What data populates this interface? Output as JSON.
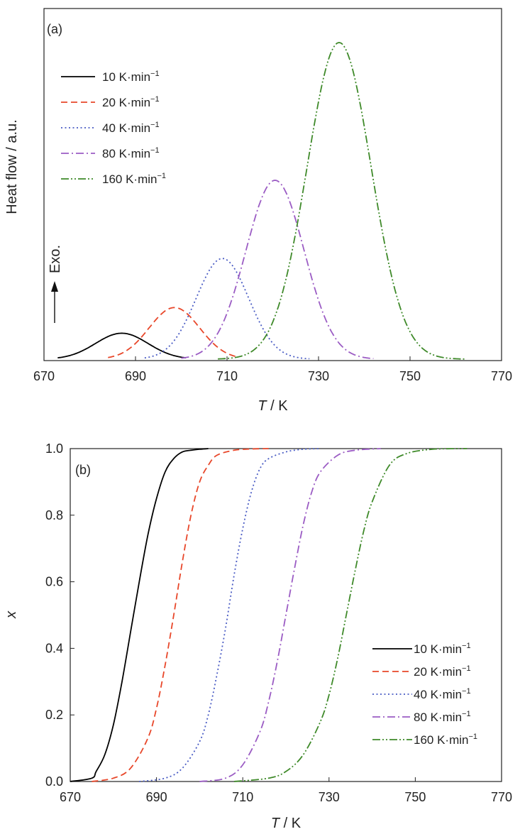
{
  "chart_data": [
    {
      "panel": "(a)",
      "type": "line",
      "xlabel": "T / K",
      "ylabel": "Heat flow / a.u.",
      "xlim": [
        670,
        770
      ],
      "xticks": [
        670,
        690,
        710,
        730,
        750,
        770
      ],
      "y_ticks_shown": false,
      "annotation": "Exo.",
      "legend_position": "top-left",
      "series": [
        {
          "name": "10 K·min−1",
          "color": "#000000",
          "dash": "solid",
          "peak_x": 687,
          "peak_y": 0.082,
          "fwhm": 13.5,
          "x_start": 673,
          "x_end": 701
        },
        {
          "name": "20 K·min−1",
          "color": "#e8472a",
          "dash": "dashed",
          "peak_x": 698.5,
          "peak_y": 0.163,
          "fwhm": 13.0,
          "x_start": 684,
          "x_end": 712
        },
        {
          "name": "40 K·min−1",
          "color": "#4a5cc4",
          "dash": "dotted",
          "peak_x": 709,
          "peak_y": 0.318,
          "fwhm": 13.5,
          "x_start": 692,
          "x_end": 728
        },
        {
          "name": "80 K·min−1",
          "color": "#9b5cc4",
          "dash": "dashdot",
          "peak_x": 720.5,
          "peak_y": 0.565,
          "fwhm": 15.0,
          "x_start": 700,
          "x_end": 742
        },
        {
          "name": "160 K·min−1",
          "color": "#3f8a2a",
          "dash": "dashdotdot",
          "peak_x": 734.5,
          "peak_y": 1.0,
          "fwhm": 16.5,
          "x_start": 708,
          "x_end": 762
        }
      ]
    },
    {
      "panel": "(b)",
      "type": "line",
      "xlabel": "T / K",
      "ylabel": "x",
      "xlim": [
        670,
        770
      ],
      "ylim": [
        0,
        1.0
      ],
      "xticks": [
        670,
        690,
        710,
        730,
        750,
        770
      ],
      "yticks": [
        0.0,
        0.2,
        0.4,
        0.6,
        0.8,
        1.0
      ],
      "legend_position": "bottom-right",
      "series": [
        {
          "name": "10 K·min−1",
          "color": "#000000",
          "dash": "solid",
          "x": [
            670,
            675,
            676,
            678,
            680,
            682,
            684,
            686,
            688,
            690,
            692,
            694,
            696,
            698,
            700,
            702
          ],
          "y": [
            0.0,
            0.01,
            0.03,
            0.08,
            0.17,
            0.3,
            0.45,
            0.6,
            0.74,
            0.85,
            0.93,
            0.97,
            0.99,
            0.995,
            0.998,
            1.0
          ]
        },
        {
          "name": "20 K·min−1",
          "color": "#e8472a",
          "dash": "dashed",
          "x": [
            675,
            680,
            684,
            688,
            690,
            692,
            694,
            696,
            698,
            700,
            702,
            704,
            708,
            712,
            716
          ],
          "y": [
            0.0,
            0.01,
            0.04,
            0.13,
            0.22,
            0.35,
            0.5,
            0.66,
            0.8,
            0.9,
            0.95,
            0.98,
            0.995,
            0.999,
            1.0
          ]
        },
        {
          "name": "40 K·min−1",
          "color": "#4a5cc4",
          "dash": "dotted",
          "x": [
            686,
            692,
            696,
            700,
            702,
            704,
            706,
            708,
            710,
            712,
            714,
            716,
            720,
            724,
            728
          ],
          "y": [
            0.0,
            0.01,
            0.04,
            0.12,
            0.2,
            0.32,
            0.46,
            0.62,
            0.76,
            0.87,
            0.94,
            0.97,
            0.99,
            0.998,
            1.0
          ]
        },
        {
          "name": "80 K·min−1",
          "color": "#9b5cc4",
          "dash": "dashdot",
          "x": [
            700,
            706,
            710,
            714,
            716,
            718,
            720,
            722,
            724,
            726,
            728,
            732,
            736,
            742
          ],
          "y": [
            0.0,
            0.01,
            0.05,
            0.15,
            0.24,
            0.36,
            0.5,
            0.64,
            0.77,
            0.87,
            0.93,
            0.98,
            0.995,
            1.0
          ]
        },
        {
          "name": "160 K·min−1",
          "color": "#3f8a2a",
          "dash": "dashdotdot",
          "x": [
            708,
            716,
            720,
            724,
            728,
            730,
            732,
            734,
            736,
            738,
            740,
            744,
            748,
            754,
            762
          ],
          "y": [
            0.0,
            0.01,
            0.03,
            0.08,
            0.18,
            0.26,
            0.37,
            0.5,
            0.63,
            0.75,
            0.84,
            0.95,
            0.985,
            0.998,
            1.0
          ]
        }
      ]
    }
  ]
}
